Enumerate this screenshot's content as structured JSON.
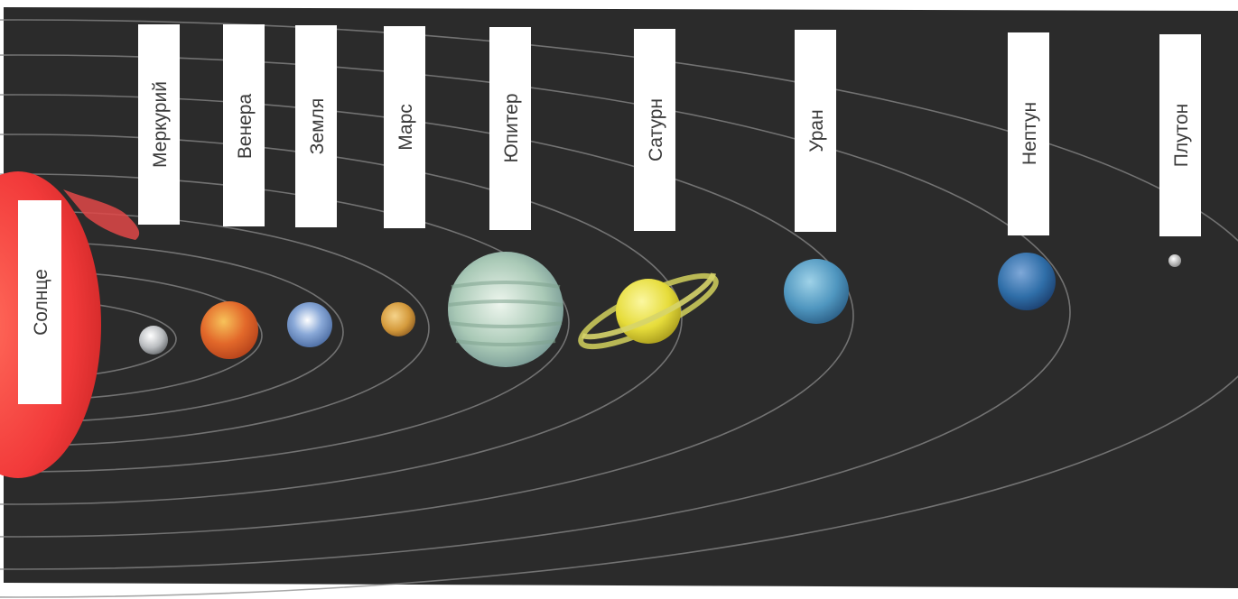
{
  "diagram": {
    "sun": {
      "label": "Солнце",
      "color": "#f23a3a"
    },
    "planets": [
      {
        "label": "Меркурий",
        "color": "#bfc3c6"
      },
      {
        "label": "Венера",
        "color": "#e2682a"
      },
      {
        "label": "Земля",
        "color": "#8aa9d8"
      },
      {
        "label": "Марс",
        "color": "#d49a3c"
      },
      {
        "label": "Юпитер",
        "color": "#a9c9b6"
      },
      {
        "label": "Сатурн",
        "color": "#e6dc3a"
      },
      {
        "label": "Уран",
        "color": "#4f96bf"
      },
      {
        "label": "Нептун",
        "color": "#2f6ea8"
      },
      {
        "label": "Плутон",
        "color": "#d8d8d8"
      }
    ],
    "background_color": "#2b2b2b",
    "orbit_color": "#8a8a8a"
  }
}
